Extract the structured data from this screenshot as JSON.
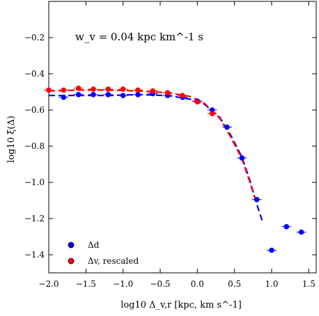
{
  "chart_data": {
    "type": "scatter",
    "annotation": "w_v = 0.04 kpc km^-1 s",
    "xlabel": "log10 Δ_v,r [kpc, km s^-1]",
    "ylabel": "log10 ξ(Δ)",
    "xlim": [
      -2.0,
      1.6
    ],
    "ylim": [
      -1.5,
      0.0
    ],
    "xticks": [
      -2.0,
      -1.5,
      -1.0,
      -0.5,
      0.0,
      0.5,
      1.0,
      1.5
    ],
    "xtick_labels": [
      "−2.0",
      "−1.5",
      "−1.0",
      "−0.5",
      "0.0",
      "0.5",
      "1.0",
      "1.5"
    ],
    "yticks": [
      -0.2,
      -0.4,
      -0.6,
      -0.8,
      -1.0,
      -1.2,
      -1.4
    ],
    "ytick_labels": [
      "−0.2",
      "−0.4",
      "−0.6",
      "−0.8",
      "−1.0",
      "−1.2",
      "−1.4"
    ],
    "legend_position": "lower-left",
    "series": [
      {
        "name": "Δd",
        "color": "#0000ff",
        "marker": "circle",
        "x": [
          -1.8,
          -1.6,
          -1.4,
          -1.2,
          -1.0,
          -0.8,
          -0.6,
          -0.4,
          -0.2,
          0.0,
          0.2,
          0.4,
          0.6,
          0.8,
          1.0,
          1.2,
          1.4
        ],
        "y": [
          -0.53,
          -0.515,
          -0.515,
          -0.515,
          -0.52,
          -0.515,
          -0.51,
          -0.52,
          -0.53,
          -0.55,
          -0.6,
          -0.695,
          -0.865,
          -1.095,
          -1.375,
          -1.245,
          -1.275
        ]
      },
      {
        "name": "Δv, rescaled",
        "color": "#ff0000",
        "marker": "circle",
        "x": [
          -2.0,
          -1.8,
          -1.6,
          -1.4,
          -1.2,
          -1.0,
          -0.8,
          -0.6,
          -0.4,
          -0.2,
          0.0,
          0.2
        ],
        "y": [
          -0.49,
          -0.49,
          -0.48,
          -0.485,
          -0.485,
          -0.485,
          -0.49,
          -0.495,
          -0.505,
          -0.52,
          -0.555,
          -0.62
        ]
      },
      {
        "name": "",
        "color": "#0000ff",
        "style": "dashed",
        "x": [
          -2.0,
          -1.6,
          -1.2,
          -0.8,
          -0.4,
          -0.1,
          0.1,
          0.3,
          0.45,
          0.6,
          0.7,
          0.8,
          0.88
        ],
        "y": [
          -0.52,
          -0.52,
          -0.52,
          -0.515,
          -0.52,
          -0.54,
          -0.57,
          -0.64,
          -0.74,
          -0.86,
          -0.98,
          -1.12,
          -1.22
        ]
      },
      {
        "name": "",
        "color": "#ff0000",
        "style": "dashed",
        "x": [
          -2.0,
          -1.6,
          -1.2,
          -0.8,
          -0.4,
          -0.1,
          0.1,
          0.3,
          0.45,
          0.6,
          0.7,
          0.8
        ],
        "y": [
          -0.495,
          -0.49,
          -0.49,
          -0.495,
          -0.505,
          -0.525,
          -0.565,
          -0.645,
          -0.75,
          -0.87,
          -0.99,
          -1.12
        ]
      }
    ]
  }
}
